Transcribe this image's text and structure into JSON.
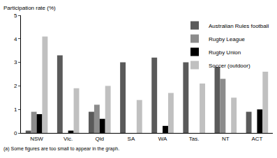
{
  "chart_data": {
    "type": "bar",
    "y_label": "Participation rate (%)",
    "annotations": [
      "(a) Some figures are too small to appear in the graph."
    ],
    "categories": [
      "NSW",
      "Vic.",
      "Qld",
      "SA",
      "WA",
      "Tas.",
      "NT",
      "ACT"
    ],
    "series": [
      {
        "name": "Australian Rules football",
        "color": "#5a5a5a",
        "values": [
          0.1,
          3.3,
          0.9,
          3.0,
          3.2,
          3.0,
          2.8,
          0.9
        ]
      },
      {
        "name": "Rugby League",
        "color": "#8c8c8c",
        "values": [
          0.9,
          null,
          1.2,
          null,
          null,
          null,
          2.3,
          null
        ]
      },
      {
        "name": "Rugby Union",
        "color": "#000000",
        "values": [
          0.8,
          0.1,
          0.6,
          null,
          0.3,
          null,
          null,
          1.0
        ]
      },
      {
        "name": "Soccer (outdoor)",
        "color": "#c0c0c0",
        "values": [
          4.1,
          1.9,
          2.0,
          1.4,
          1.7,
          2.1,
          1.5,
          2.6
        ]
      }
    ],
    "ylim": [
      0,
      5
    ],
    "yticks": [
      0,
      1,
      2,
      3,
      4,
      5
    ],
    "grid": false,
    "legend": "top-right"
  }
}
